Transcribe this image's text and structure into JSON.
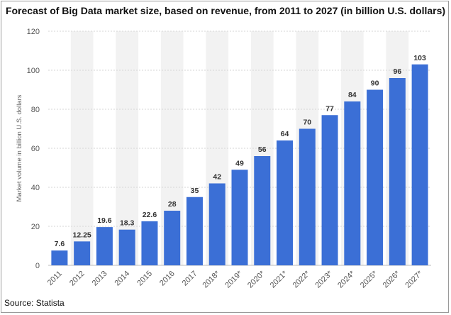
{
  "header": {
    "title": "Forecast of Big Data market size, based on revenue, from 2011 to 2027 (in billion U.S. dollars)"
  },
  "footer": {
    "source": "Source: Statista"
  },
  "colors": {
    "bar": "#3b6fd6",
    "band": "#f2f2f2",
    "grid": "#d6d6d6"
  },
  "chart_data": {
    "type": "bar",
    "title": "Forecast of Big Data market size, based on revenue, from 2011 to 2027 (in billion U.S. dollars)",
    "xlabel": "",
    "ylabel": "Market volume in billion U.S. dollars",
    "ylim": [
      0,
      120
    ],
    "yticks": [
      0,
      20,
      40,
      60,
      80,
      100,
      120
    ],
    "grid": true,
    "categories": [
      "2011",
      "2012",
      "2013",
      "2014",
      "2015",
      "2016",
      "2017",
      "2018*",
      "2019*",
      "2020*",
      "2021*",
      "2022*",
      "2023*",
      "2024*",
      "2025*",
      "2026*",
      "2027*"
    ],
    "values": [
      7.6,
      12.25,
      19.6,
      18.3,
      22.6,
      28,
      35,
      42,
      49,
      56,
      64,
      70,
      77,
      84,
      90,
      96,
      103
    ],
    "value_labels": [
      "7.6",
      "12.25",
      "19.6",
      "18.3",
      "22.6",
      "28",
      "35",
      "42",
      "49",
      "56",
      "64",
      "70",
      "77",
      "84",
      "90",
      "96",
      "103"
    ]
  }
}
